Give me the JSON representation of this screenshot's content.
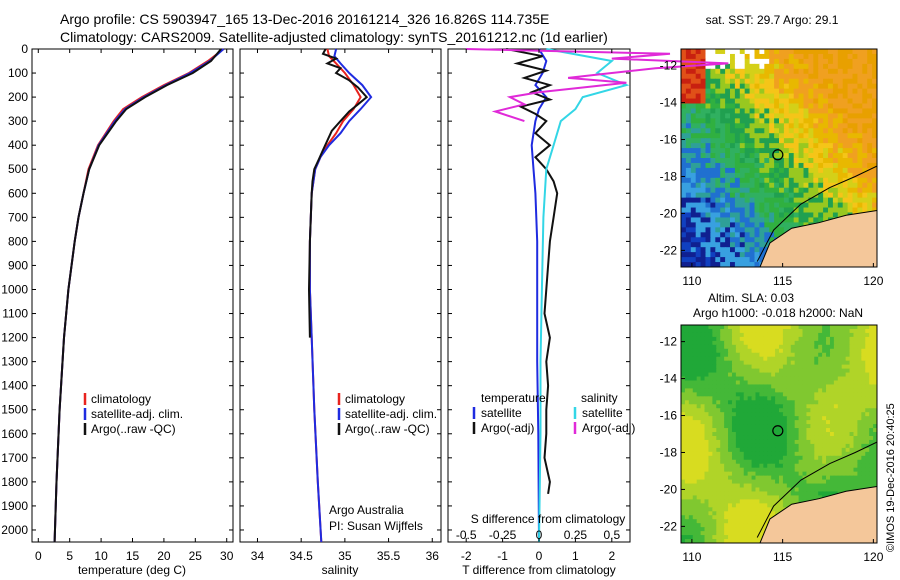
{
  "header": {
    "line1": "Argo profile: CS 5903947_165 13-Dec-2016 20161214_326 16.826S 114.735E",
    "line2": "Climatology: CARS2009. Satellite-adjusted climatology: synTS_20161212.nc (1d earlier)"
  },
  "sst_title": "sat. SST: 29.7 Argo: 29.1",
  "sla_title1": "Altim. SLA: 0.03",
  "sla_title2": "Argo h1000: -0.018 h2000: NaN",
  "credit": "©IMOS 19-Dec-2016 20:40:25",
  "argo_info": {
    "line1": "Argo Australia",
    "line2": "PI: Susan Wijffels"
  },
  "colors": {
    "climatology": "#e8231e",
    "satellite": "#1f2be0",
    "argo": "#111111",
    "sal_satellite": "#33d6e6",
    "sal_argo": "#e02ad8",
    "land": "#f4c79a"
  },
  "chart_data": [
    {
      "type": "line",
      "name": "temperature",
      "xlabel": "temperature (deg C)",
      "xlim": [
        -1,
        31
      ],
      "xticks": [
        0,
        5,
        10,
        15,
        20,
        25,
        30
      ],
      "ylim": [
        0,
        2050
      ],
      "yticks": [
        0,
        100,
        200,
        300,
        400,
        500,
        600,
        700,
        800,
        900,
        1000,
        1100,
        1200,
        1300,
        1400,
        1500,
        1600,
        1700,
        1800,
        1900,
        2000
      ],
      "legend": [
        "climatology",
        "satellite-adj. clim.",
        "Argo(..raw -QC)"
      ],
      "series": [
        {
          "name": "climatology",
          "depth": [
            0,
            50,
            100,
            150,
            200,
            250,
            300,
            400,
            500,
            600,
            700,
            800,
            1000,
            1200,
            1500,
            1800,
            2050
          ],
          "values": [
            29.5,
            27,
            24,
            20,
            16.5,
            13.5,
            12,
            9.5,
            8,
            7.2,
            6.4,
            5.8,
            4.8,
            4.1,
            3.4,
            2.9,
            2.6
          ]
        },
        {
          "name": "satellite-adj. clim.",
          "depth": [
            0,
            50,
            100,
            150,
            200,
            250,
            300,
            400,
            500,
            600,
            700,
            800,
            1000,
            1200,
            1500,
            1800,
            2050
          ],
          "values": [
            29.5,
            27.3,
            24.2,
            20.3,
            16.8,
            13.8,
            12.2,
            9.6,
            8.1,
            7.2,
            6.4,
            5.8,
            4.8,
            4.1,
            3.4,
            2.9,
            2.6
          ]
        },
        {
          "name": "Argo(..raw -QC)",
          "depth": [
            0,
            50,
            100,
            150,
            200,
            250,
            300,
            400,
            500,
            600,
            700,
            800,
            1000,
            1200,
            1500,
            1800,
            2050
          ],
          "values": [
            29.1,
            27.5,
            24.6,
            20.5,
            17,
            14,
            12.4,
            9.7,
            8.1,
            7.2,
            6.4,
            5.8,
            4.8,
            4.1,
            3.4,
            2.9,
            2.6
          ]
        }
      ]
    },
    {
      "type": "line",
      "name": "salinity",
      "xlabel": "salinity",
      "xlim": [
        33.8,
        36.1
      ],
      "xticks": [
        34,
        34.5,
        35,
        35.5,
        36
      ],
      "ylim": [
        0,
        2050
      ],
      "legend": [
        "climatology",
        "satellite-adj. clim.",
        "Argo(..raw -QC)"
      ],
      "series": [
        {
          "name": "climatology",
          "depth": [
            0,
            30,
            60,
            100,
            150,
            200,
            250,
            300,
            350,
            400,
            450,
            500,
            600,
            800,
            1000,
            1200,
            1500,
            1800,
            2050
          ],
          "values": [
            34.8,
            34.82,
            34.9,
            35.0,
            35.1,
            35.18,
            35.1,
            34.98,
            34.9,
            34.8,
            34.72,
            34.66,
            34.62,
            34.6,
            34.6,
            34.62,
            34.65,
            34.69,
            34.73
          ]
        },
        {
          "name": "satellite-adj. clim.",
          "depth": [
            0,
            30,
            60,
            100,
            150,
            200,
            250,
            300,
            350,
            400,
            450,
            500,
            600,
            800,
            1000,
            1200,
            1500,
            1800,
            2050
          ],
          "values": [
            34.9,
            34.88,
            34.95,
            35.05,
            35.2,
            35.3,
            35.18,
            35.05,
            34.95,
            34.82,
            34.72,
            34.66,
            34.62,
            34.6,
            34.6,
            34.62,
            34.65,
            34.69,
            34.73
          ]
        },
        {
          "name": "Argo(..raw -QC)",
          "depth": [
            0,
            20,
            40,
            60,
            80,
            100,
            130,
            160,
            200,
            230,
            260,
            300,
            340,
            380,
            420,
            460,
            500,
            550,
            600,
            800,
            1000,
            1200
          ],
          "values": [
            34.78,
            34.75,
            34.9,
            34.8,
            34.95,
            34.9,
            35.05,
            35.15,
            35.25,
            35.15,
            35.05,
            34.95,
            34.85,
            34.8,
            34.75,
            34.7,
            34.65,
            34.63,
            34.62,
            34.6,
            34.59,
            34.6
          ]
        }
      ]
    },
    {
      "type": "line",
      "name": "difference from climatology",
      "xlabel": "T difference from climatology",
      "x2label": "S difference from climatology",
      "xlim": [
        -2.5,
        2.5
      ],
      "xticks": [
        -2,
        -1,
        0,
        1,
        2
      ],
      "x2ticks": [
        -0.5,
        -0.25,
        0,
        0.25,
        0.5
      ],
      "ylim": [
        0,
        2050
      ],
      "legend_temperature": [
        "temperature",
        "satellite",
        "Argo(-adj)"
      ],
      "legend_salinity": [
        "salinity",
        "satellite",
        "Argo(-adj)"
      ],
      "series": [
        {
          "name": "temperature satellite",
          "depth": [
            0,
            50,
            100,
            150,
            200,
            250,
            300,
            400,
            500,
            600,
            800,
            1000,
            1300,
            1600,
            2050
          ],
          "values": [
            0.0,
            0.2,
            0.1,
            -0.1,
            0.2,
            0.0,
            -0.1,
            -0.2,
            -0.15,
            -0.1,
            -0.05,
            -0.05,
            -0.05,
            -0.02,
            0.0
          ]
        },
        {
          "name": "temperature Argo(-adj)",
          "depth": [
            0,
            30,
            60,
            90,
            120,
            150,
            180,
            210,
            240,
            270,
            300,
            350,
            400,
            450,
            500,
            550,
            600,
            700,
            800,
            900,
            1000,
            1100,
            1200,
            1300,
            1400,
            1500,
            1600,
            1700,
            1800,
            1850
          ],
          "values": [
            -0.9,
            0.1,
            -0.6,
            0.2,
            -0.4,
            0.3,
            -0.2,
            0.3,
            -0.5,
            -0.1,
            0.2,
            -0.1,
            0.3,
            -0.1,
            0.2,
            0.4,
            0.5,
            0.4,
            0.3,
            0.25,
            0.2,
            0.15,
            0.3,
            0.2,
            0.25,
            0.2,
            0.2,
            0.15,
            0.3,
            0.25
          ]
        },
        {
          "name": "salinity satellite",
          "depth": [
            0,
            50,
            100,
            150,
            200,
            250,
            300,
            400,
            500,
            700,
            1000,
            1300,
            1600,
            2050
          ],
          "values": [
            0.05,
            0.5,
            0.4,
            0.6,
            0.3,
            0.25,
            0.15,
            0.1,
            0.05,
            0.03,
            0.02,
            0.01,
            0.01,
            0.0
          ]
        },
        {
          "name": "salinity Argo(-adj)",
          "depth": [
            0,
            20,
            40,
            60,
            80,
            100,
            120,
            140,
            160,
            180,
            200,
            230,
            260,
            300
          ],
          "values": [
            -0.5,
            0.9,
            0.5,
            1.3,
            0.8,
            0.5,
            0.2,
            0.6,
            0.3,
            0.0,
            -0.2,
            -0.1,
            -0.3,
            -0.1
          ]
        }
      ]
    },
    {
      "type": "heatmap",
      "name": "sat. SST map",
      "xticks": [
        110,
        115,
        120
      ],
      "yticks": [
        -12,
        -14,
        -16,
        -18,
        -20,
        -22
      ],
      "xlim": [
        109.4,
        120.2
      ],
      "ylim": [
        -22.9,
        -11.1
      ],
      "marker": {
        "lon": 114.735,
        "lat": -16.826
      }
    },
    {
      "type": "heatmap",
      "name": "Altim. SLA map",
      "xticks": [
        110,
        115,
        120
      ],
      "yticks": [
        -12,
        -14,
        -16,
        -18,
        -20,
        -22
      ],
      "xlim": [
        109.4,
        120.2
      ],
      "ylim": [
        -22.9,
        -11.1
      ],
      "marker": {
        "lon": 114.735,
        "lat": -16.826
      }
    }
  ]
}
